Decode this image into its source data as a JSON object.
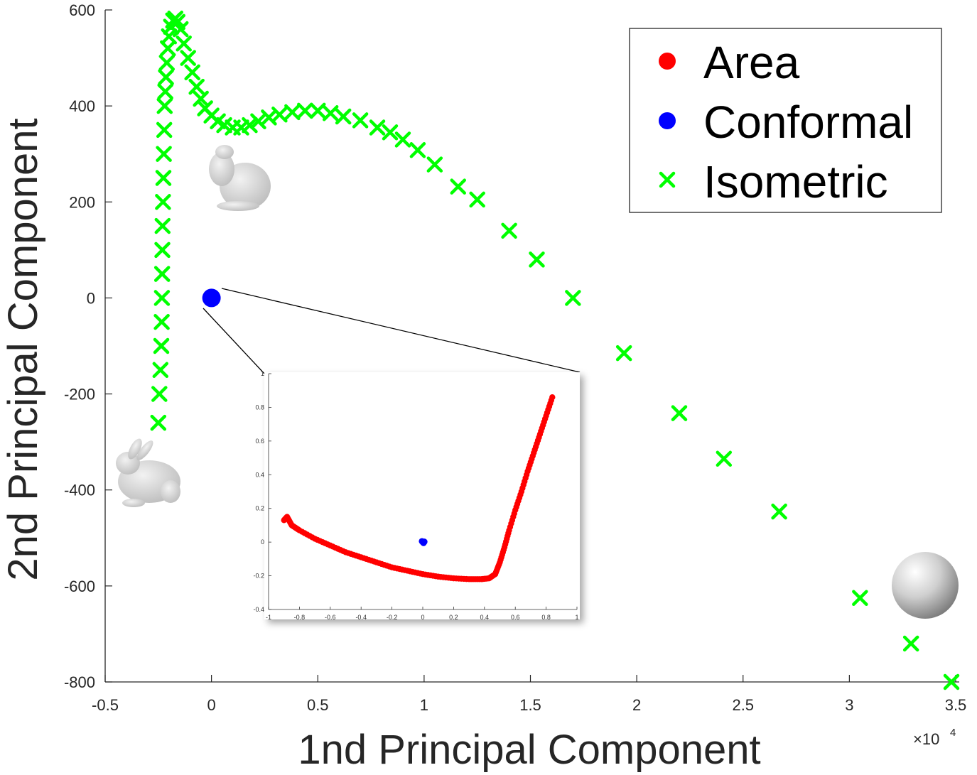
{
  "chart_data": [
    {
      "type": "scatter",
      "xlabel": "1nd Principal Component",
      "ylabel": "2nd Principal Component",
      "x_exponent_label": "×10",
      "x_exponent_power": "4",
      "xlim": [
        -0.5,
        3.5
      ],
      "ylim": [
        -800,
        600
      ],
      "x_ticks": [
        "-0.5",
        "0",
        "0.5",
        "1",
        "1.5",
        "2",
        "2.5",
        "3",
        "3.5"
      ],
      "x_tick_values": [
        -0.5,
        0,
        0.5,
        1,
        1.5,
        2,
        2.5,
        3,
        3.5
      ],
      "y_ticks": [
        "600",
        "400",
        "200",
        "0",
        "-200",
        "-400",
        "-600",
        "-800"
      ],
      "y_tick_values": [
        600,
        400,
        200,
        0,
        -200,
        -400,
        -600,
        -800
      ],
      "grid": false,
      "legend_position": "top-right",
      "series": [
        {
          "name": "Area",
          "marker": "circle",
          "color": "#ff0000",
          "x": [
            0
          ],
          "y": [
            0
          ]
        },
        {
          "name": "Conformal",
          "marker": "circle",
          "color": "#0000ff",
          "x": [
            0
          ],
          "y": [
            0
          ]
        },
        {
          "name": "Isometric",
          "marker": "x",
          "color": "#00ff00",
          "x": [
            -0.25,
            -0.245,
            -0.24,
            -0.236,
            -0.234,
            -0.233,
            -0.232,
            -0.231,
            -0.23,
            -0.228,
            -0.226,
            -0.224,
            -0.222,
            -0.22,
            -0.217,
            -0.214,
            -0.21,
            -0.205,
            -0.2,
            -0.19,
            -0.18,
            -0.17,
            -0.16,
            -0.145,
            -0.13,
            -0.11,
            -0.09,
            -0.07,
            -0.05,
            -0.03,
            0.0,
            0.03,
            0.06,
            0.1,
            0.14,
            0.18,
            0.22,
            0.27,
            0.32,
            0.38,
            0.44,
            0.5,
            0.56,
            0.62,
            0.7,
            0.78,
            0.84,
            0.9,
            0.97,
            1.05,
            1.16,
            1.25,
            1.4,
            1.53,
            1.7,
            1.94,
            2.2,
            2.41,
            2.67,
            3.05,
            3.29,
            3.48
          ],
          "y": [
            -260,
            -200,
            -150,
            -100,
            -50,
            0,
            50,
            100,
            150,
            200,
            250,
            300,
            350,
            400,
            430,
            460,
            490,
            520,
            545,
            565,
            578,
            582,
            575,
            560,
            530,
            500,
            470,
            440,
            415,
            395,
            380,
            368,
            360,
            355,
            355,
            360,
            368,
            376,
            382,
            387,
            390,
            390,
            385,
            378,
            370,
            355,
            345,
            330,
            308,
            278,
            232,
            205,
            140,
            80,
            0,
            -115,
            -240,
            -335,
            -445,
            -625,
            -720,
            -800
          ]
        }
      ]
    },
    {
      "type": "scatter",
      "xlim": [
        -1,
        1
      ],
      "ylim": [
        -0.4,
        1
      ],
      "x_ticks": [
        "-1",
        "-0.8",
        "-0.6",
        "-0.4",
        "-0.2",
        "0",
        "0.2",
        "0.4",
        "0.6",
        "0.8",
        "1"
      ],
      "x_tick_values": [
        -1,
        -0.8,
        -0.6,
        -0.4,
        -0.2,
        0,
        0.2,
        0.4,
        0.6,
        0.8,
        1
      ],
      "y_ticks": [
        "1",
        "0.8",
        "0.6",
        "0.4",
        "0.2",
        "0",
        "-0.2",
        "-0.4"
      ],
      "y_tick_values": [
        1,
        0.8,
        0.6,
        0.4,
        0.2,
        0,
        -0.2,
        -0.4
      ],
      "series": [
        {
          "name": "Area",
          "color": "#ff0000",
          "x": [
            -0.9,
            -0.88,
            -0.85,
            -0.8,
            -0.7,
            -0.6,
            -0.5,
            -0.4,
            -0.3,
            -0.2,
            -0.1,
            0.0,
            0.1,
            0.2,
            0.3,
            0.38,
            0.43,
            0.47,
            0.5,
            0.53,
            0.56,
            0.6,
            0.64,
            0.68,
            0.72,
            0.76,
            0.8,
            0.84
          ],
          "y": [
            0.13,
            0.15,
            0.1,
            0.07,
            0.02,
            -0.02,
            -0.06,
            -0.09,
            -0.12,
            -0.15,
            -0.17,
            -0.19,
            -0.205,
            -0.215,
            -0.22,
            -0.22,
            -0.215,
            -0.19,
            -0.12,
            -0.03,
            0.07,
            0.19,
            0.3,
            0.42,
            0.53,
            0.64,
            0.75,
            0.86
          ]
        },
        {
          "name": "Conformal",
          "color": "#0000ff",
          "x": [
            0.0,
            0.005,
            -0.005,
            0.01
          ],
          "y": [
            0.0,
            -0.005,
            0.005,
            0.002
          ]
        }
      ]
    }
  ],
  "legend": {
    "area": "Area",
    "conformal": "Conformal",
    "isometric": "Isometric"
  }
}
